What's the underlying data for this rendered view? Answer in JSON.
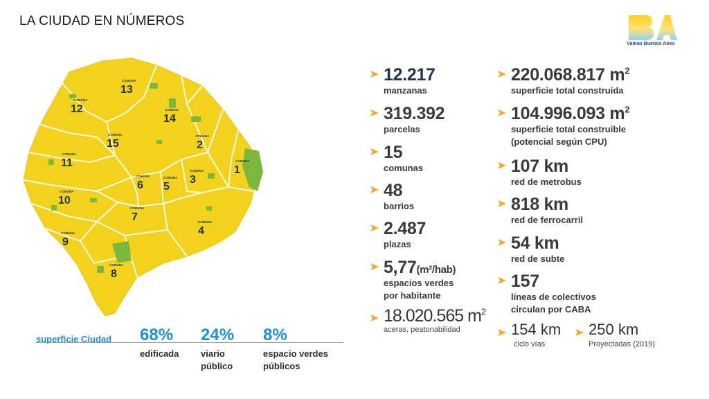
{
  "header": {
    "title": "LA CIUDAD EN NÚMEROS"
  },
  "logo": {
    "mark_text": "BA",
    "tagline": "Vamos Buenos Aires"
  },
  "colors": {
    "map_yellow": "#f2d21c",
    "park_green": "#7cb83e",
    "accent_orange": "#f5a623",
    "summary_blue": "#1f8fd6",
    "dark_navy": "#1f3551"
  },
  "map": {
    "comuna_caption": "COMUNA",
    "comunas": [
      "1",
      "2",
      "3",
      "4",
      "5",
      "6",
      "7",
      "8",
      "9",
      "10",
      "11",
      "12",
      "13",
      "14",
      "15"
    ]
  },
  "stats_left": [
    {
      "value": "12.217",
      "label": "manzanas"
    },
    {
      "value": "319.392",
      "label": "parcelas"
    },
    {
      "value": "15",
      "label": "comunas"
    },
    {
      "value": "48",
      "label": "barrios"
    },
    {
      "value": "2.487",
      "label": "plazas"
    },
    {
      "value": "5,77",
      "unit": "(m²/hab)",
      "label": "espacios verdes",
      "label2": "por habitante"
    },
    {
      "value": "18.020.565 m",
      "sup": "2",
      "label": "aceras, peatonabilidad"
    }
  ],
  "stats_right": [
    {
      "value": "220.068.817 m",
      "sup": "2",
      "label": "superficie total construida"
    },
    {
      "value": "104.996.093 m",
      "sup": "2",
      "label": "superficie total construible",
      "label2": "(potencial según CPU)"
    },
    {
      "value": "107 km",
      "label": "red de metrobus"
    },
    {
      "value": "818 km",
      "label": "red de ferrocarril"
    },
    {
      "value": "54 km",
      "label": "red de subte"
    },
    {
      "value": "157",
      "label": "líneas de colectivos",
      "label2": "circulan por CABA"
    },
    {
      "value": "154 km",
      "label": "ciclo vías"
    },
    {
      "value": "250 km",
      "label": "Proyectadas (2019)"
    }
  ],
  "summary": {
    "label": "superficie Ciudad",
    "items": [
      {
        "value": "68%",
        "label": "edificada"
      },
      {
        "value": "24%",
        "label": "viario\npúblico"
      },
      {
        "value": "8%",
        "label": "espacio verdes\npúblicos"
      }
    ]
  }
}
